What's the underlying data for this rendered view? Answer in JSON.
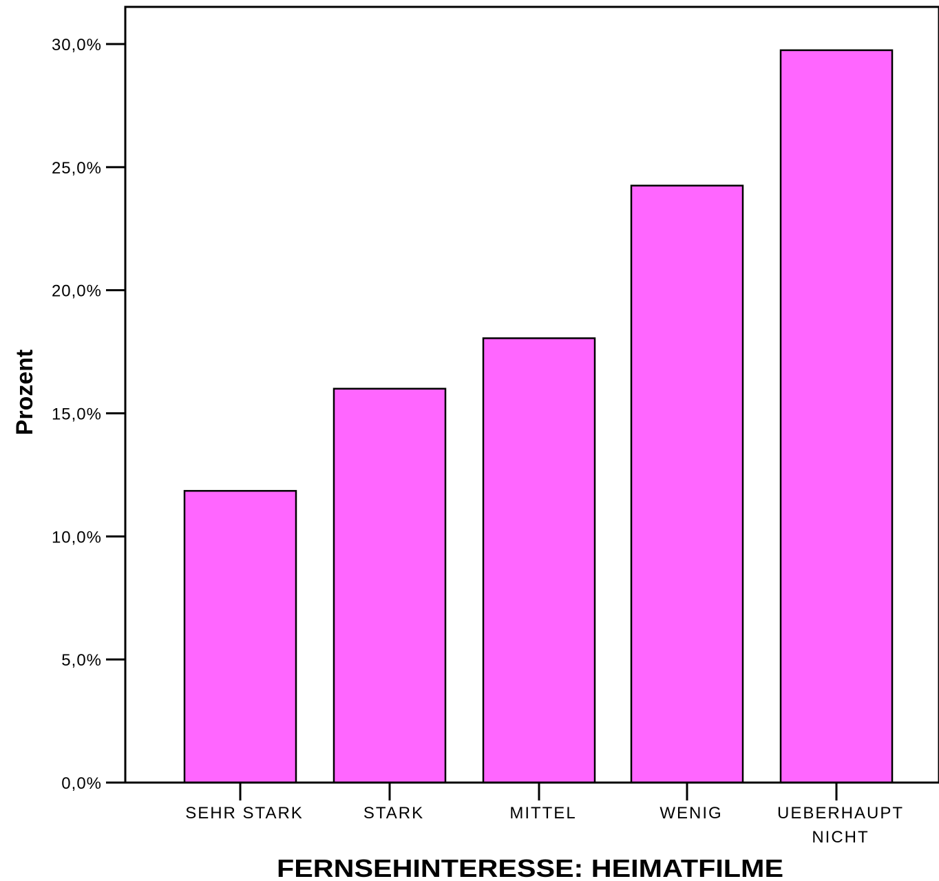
{
  "chart_data": {
    "type": "bar",
    "categories": [
      "SEHR STARK",
      "STARK",
      "MITTEL",
      "WENIG",
      "UEBERHAUPT NICHT"
    ],
    "category_label_lines": [
      [
        "SEHR STARK"
      ],
      [
        "STARK"
      ],
      [
        "MITTEL"
      ],
      [
        "WENIG"
      ],
      [
        "UEBERHAUPT",
        "NICHT"
      ]
    ],
    "values": [
      11.85,
      16.0,
      18.05,
      24.25,
      29.75
    ],
    "xlabel": "FERNSEHINTERESSE: HEIMATFILME",
    "ylabel": "Prozent",
    "ylim": [
      0,
      30
    ],
    "yticks": [
      0,
      5,
      10,
      15,
      20,
      25,
      30
    ],
    "ytick_labels": [
      "0,0%",
      "5,0%",
      "10,0%",
      "15,0%",
      "20,0%",
      "25,0%",
      "30,0%"
    ],
    "grid": false,
    "colors": {
      "bar_fill": "#ff66ff",
      "bar_stroke": "#000000",
      "axis": "#000000"
    }
  }
}
